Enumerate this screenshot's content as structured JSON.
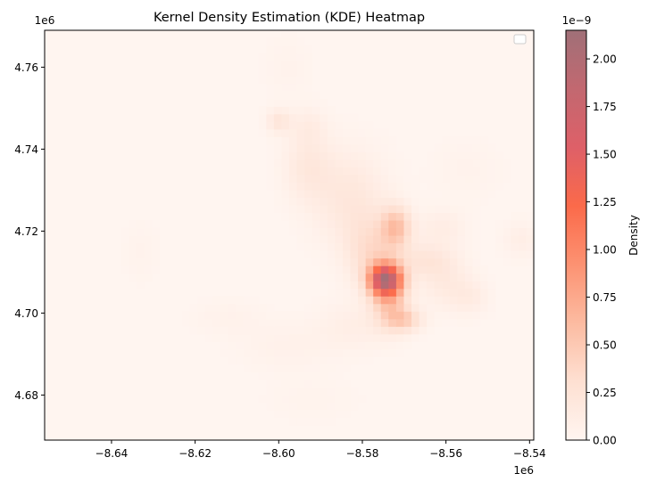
{
  "chart_data": {
    "type": "heatmap",
    "title": "Kernel Density Estimation (KDE) Heatmap",
    "xlabel": "",
    "ylabel": "",
    "x_offset_label": "1e6",
    "y_offset_label": "1e6",
    "xlim": [
      -8.656,
      -8.539
    ],
    "ylim": [
      4.669,
      4.769
    ],
    "x_ticks": [
      -8.64,
      -8.62,
      -8.6,
      -8.58,
      -8.56,
      -8.54
    ],
    "x_tick_labels": [
      "−8.64",
      "−8.62",
      "−8.60",
      "−8.58",
      "−8.56",
      "−8.54"
    ],
    "y_ticks": [
      4.68,
      4.7,
      4.72,
      4.74,
      4.76
    ],
    "y_tick_labels": [
      "4.68",
      "4.70",
      "4.72",
      "4.74",
      "4.76"
    ],
    "grid": false,
    "legend": {
      "placement": "top-right",
      "entries": []
    },
    "colorbar": {
      "label": "Density",
      "offset_label": "1e−9",
      "range": [
        0,
        2.15
      ],
      "ticks": [
        0,
        0.25,
        0.5,
        0.75,
        1.0,
        1.25,
        1.5,
        1.75,
        2.0
      ],
      "tick_labels": [
        "0.00",
        "0.25",
        "0.50",
        "0.75",
        "1.00",
        "1.25",
        "1.50",
        "1.75",
        "2.00"
      ],
      "colormap": [
        "#fff5f0",
        "#fee0d2",
        "#fcbba1",
        "#fc9272",
        "#fb6a4a",
        "#de6068",
        "#c26870",
        "#a07078"
      ]
    },
    "density_peaks": [
      {
        "x": -8.5745,
        "y": 4.7083,
        "sx": 0.0026,
        "sy": 0.0026,
        "value": 1.65
      },
      {
        "x": -8.5735,
        "y": 4.7045,
        "sx": 0.003,
        "sy": 0.005,
        "value": 0.55
      },
      {
        "x": -8.572,
        "y": 4.721,
        "sx": 0.0025,
        "sy": 0.0035,
        "value": 0.55
      },
      {
        "x": -8.57,
        "y": 4.6985,
        "sx": 0.003,
        "sy": 0.002,
        "value": 0.4
      },
      {
        "x": -8.578,
        "y": 4.715,
        "sx": 0.004,
        "sy": 0.006,
        "value": 0.3
      },
      {
        "x": -8.583,
        "y": 4.728,
        "sx": 0.006,
        "sy": 0.008,
        "value": 0.2
      },
      {
        "x": -8.593,
        "y": 4.736,
        "sx": 0.004,
        "sy": 0.006,
        "value": 0.18
      },
      {
        "x": -8.6,
        "y": 4.747,
        "sx": 0.002,
        "sy": 0.002,
        "value": 0.22
      },
      {
        "x": -8.593,
        "y": 4.746,
        "sx": 0.003,
        "sy": 0.003,
        "value": 0.1
      },
      {
        "x": -8.565,
        "y": 4.713,
        "sx": 0.005,
        "sy": 0.003,
        "value": 0.22
      },
      {
        "x": -8.56,
        "y": 4.707,
        "sx": 0.004,
        "sy": 0.004,
        "value": 0.15
      },
      {
        "x": -8.554,
        "y": 4.704,
        "sx": 0.003,
        "sy": 0.003,
        "value": 0.12
      },
      {
        "x": -8.561,
        "y": 4.721,
        "sx": 0.004,
        "sy": 0.003,
        "value": 0.12
      },
      {
        "x": -8.542,
        "y": 4.718,
        "sx": 0.003,
        "sy": 0.003,
        "value": 0.1
      },
      {
        "x": -8.582,
        "y": 4.697,
        "sx": 0.006,
        "sy": 0.004,
        "value": 0.1
      },
      {
        "x": -8.598,
        "y": 4.692,
        "sx": 0.008,
        "sy": 0.004,
        "value": 0.06
      },
      {
        "x": -8.612,
        "y": 4.699,
        "sx": 0.006,
        "sy": 0.003,
        "value": 0.05
      },
      {
        "x": -8.633,
        "y": 4.715,
        "sx": 0.003,
        "sy": 0.005,
        "value": 0.04
      },
      {
        "x": -8.598,
        "y": 4.76,
        "sx": 0.004,
        "sy": 0.005,
        "value": 0.04
      },
      {
        "x": -8.592,
        "y": 4.679,
        "sx": 0.008,
        "sy": 0.004,
        "value": 0.03
      },
      {
        "x": -8.555,
        "y": 4.735,
        "sx": 0.006,
        "sy": 0.005,
        "value": 0.04
      }
    ]
  }
}
